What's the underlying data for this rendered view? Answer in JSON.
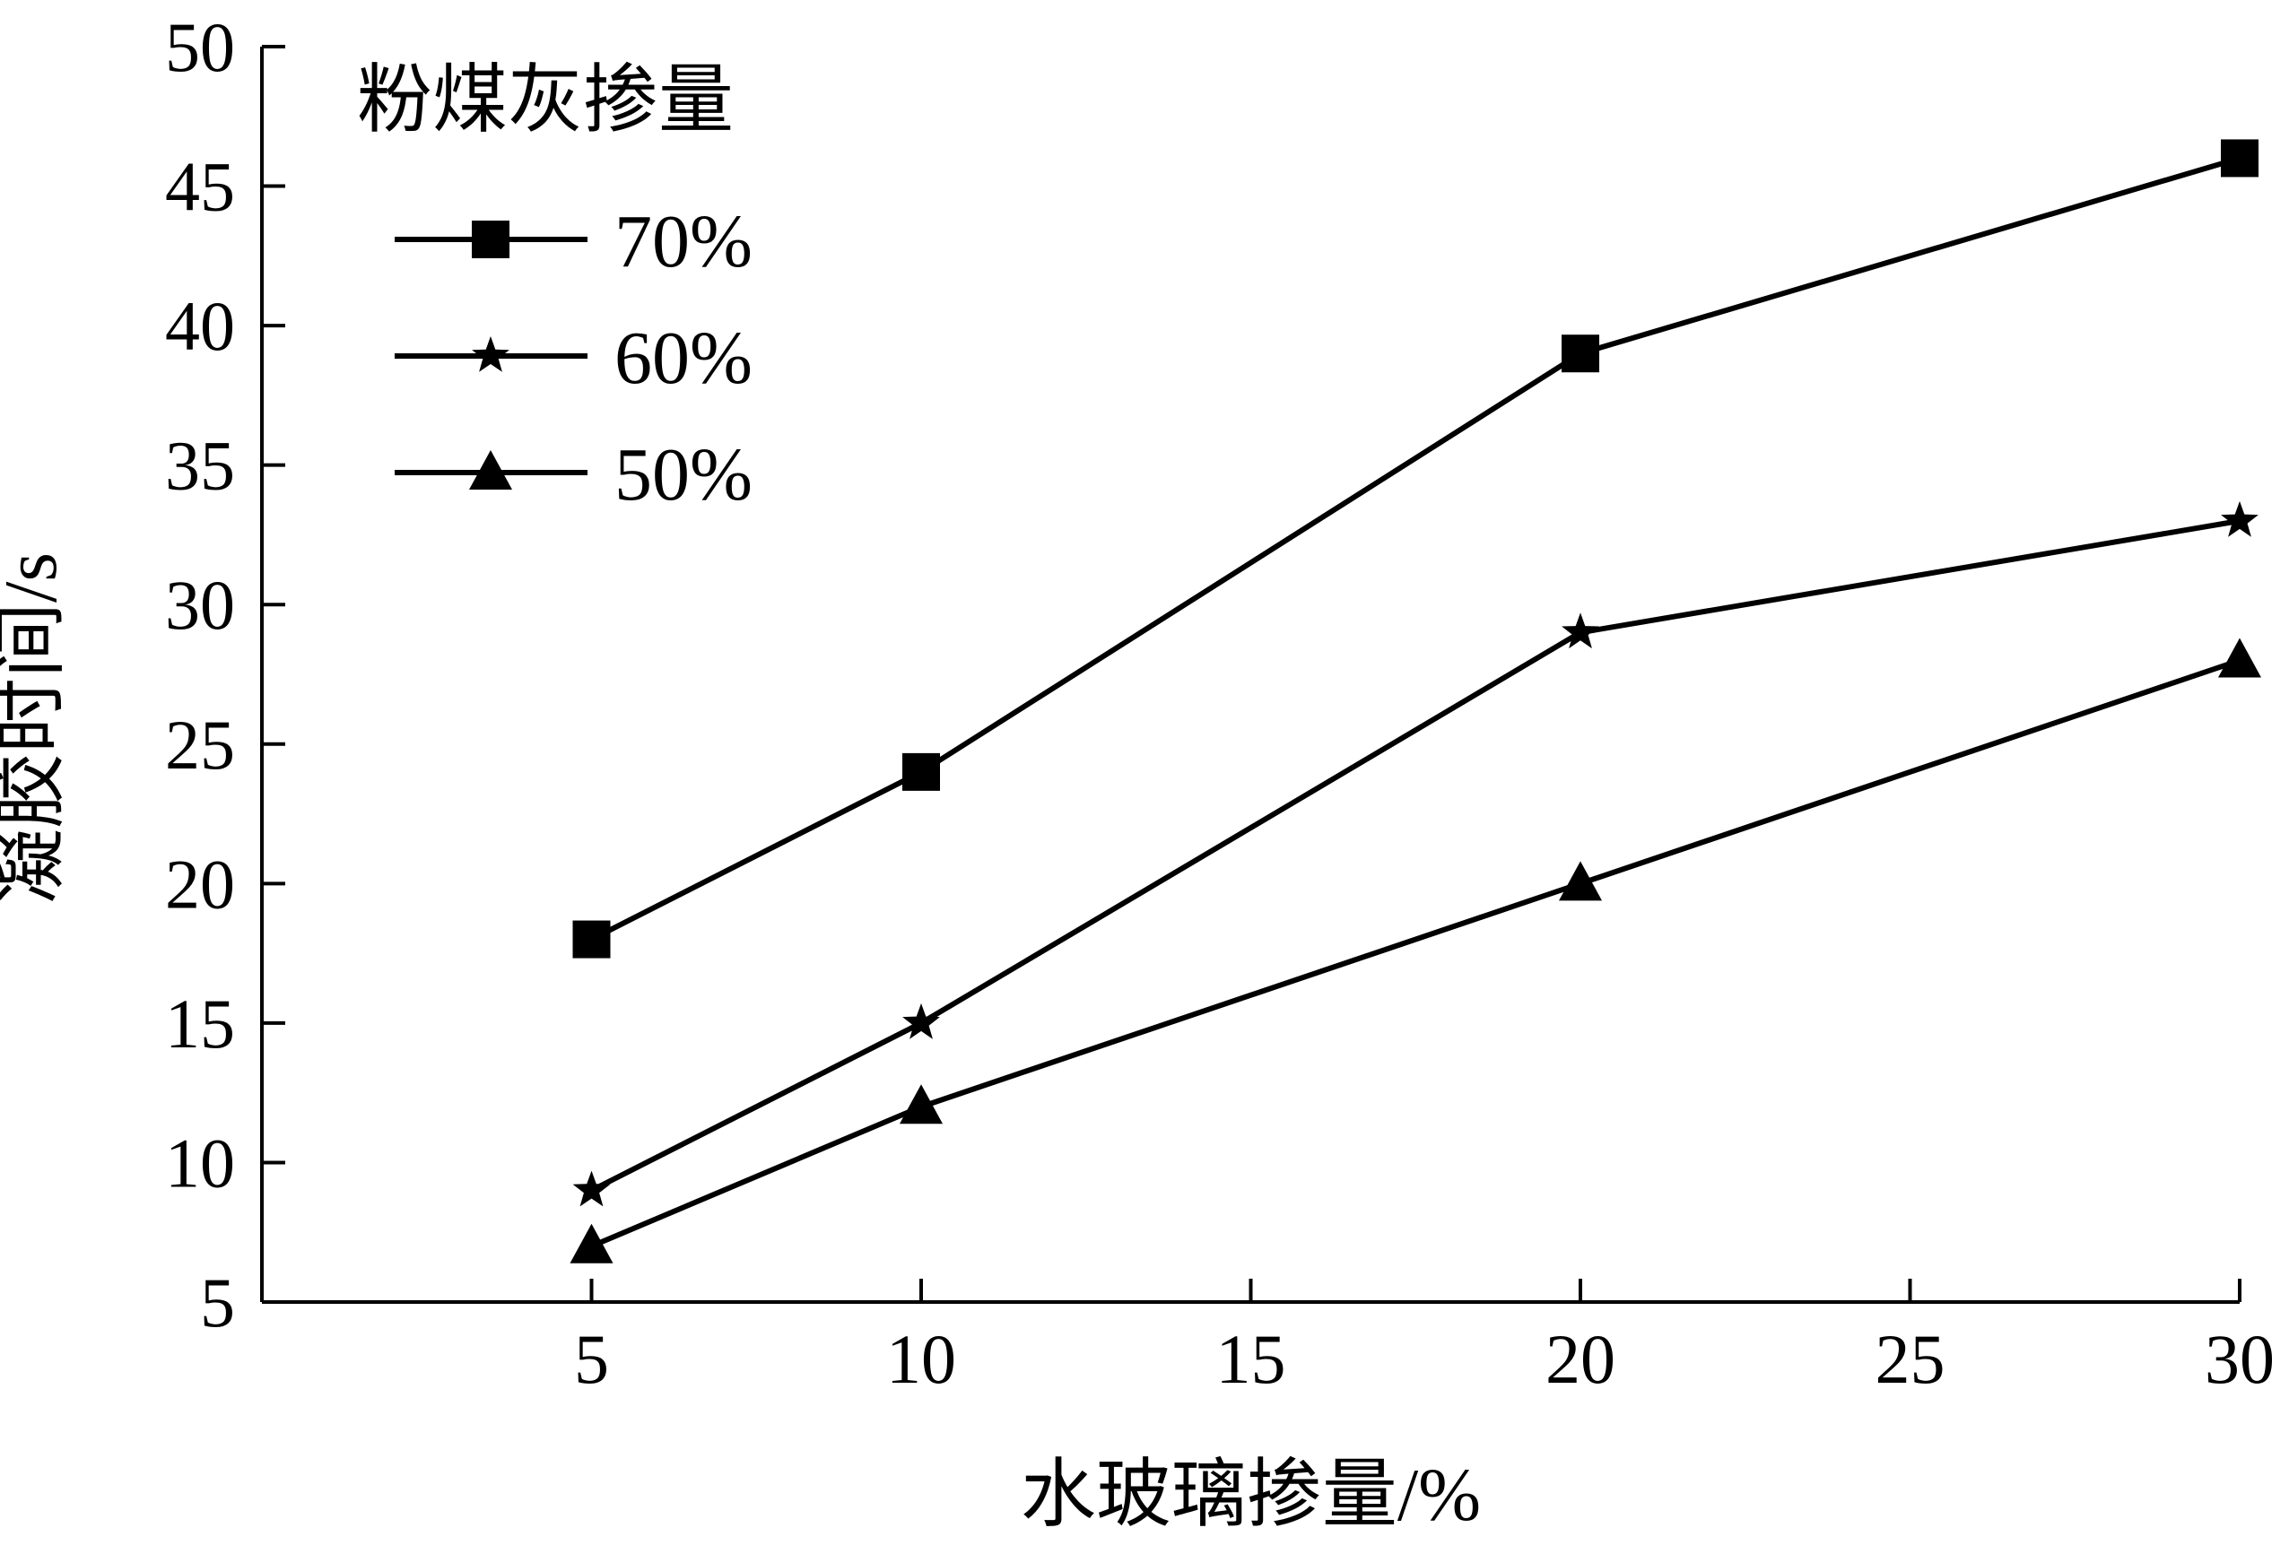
{
  "chart_data": {
    "type": "line",
    "xlabel": "水玻璃掺量/%",
    "ylabel": "凝胶时间/s",
    "xlim": [
      0,
      30
    ],
    "ylim": [
      5,
      50
    ],
    "xticks": [
      5,
      10,
      15,
      20,
      25,
      30
    ],
    "yticks": [
      5,
      10,
      15,
      20,
      25,
      30,
      35,
      40,
      45,
      50
    ],
    "x": [
      5,
      10,
      20,
      30
    ],
    "legend": {
      "title": "粉煤灰掺量",
      "placement": "top-left"
    },
    "series": [
      {
        "name": "70%",
        "marker": "square",
        "values": [
          18,
          24,
          39,
          46
        ]
      },
      {
        "name": "60%",
        "marker": "star",
        "values": [
          9,
          15,
          29,
          33
        ]
      },
      {
        "name": "50%",
        "marker": "triangle",
        "values": [
          7,
          12,
          20,
          28
        ]
      }
    ],
    "colors": {
      "line": "#000000",
      "background": "#ffffff"
    }
  }
}
